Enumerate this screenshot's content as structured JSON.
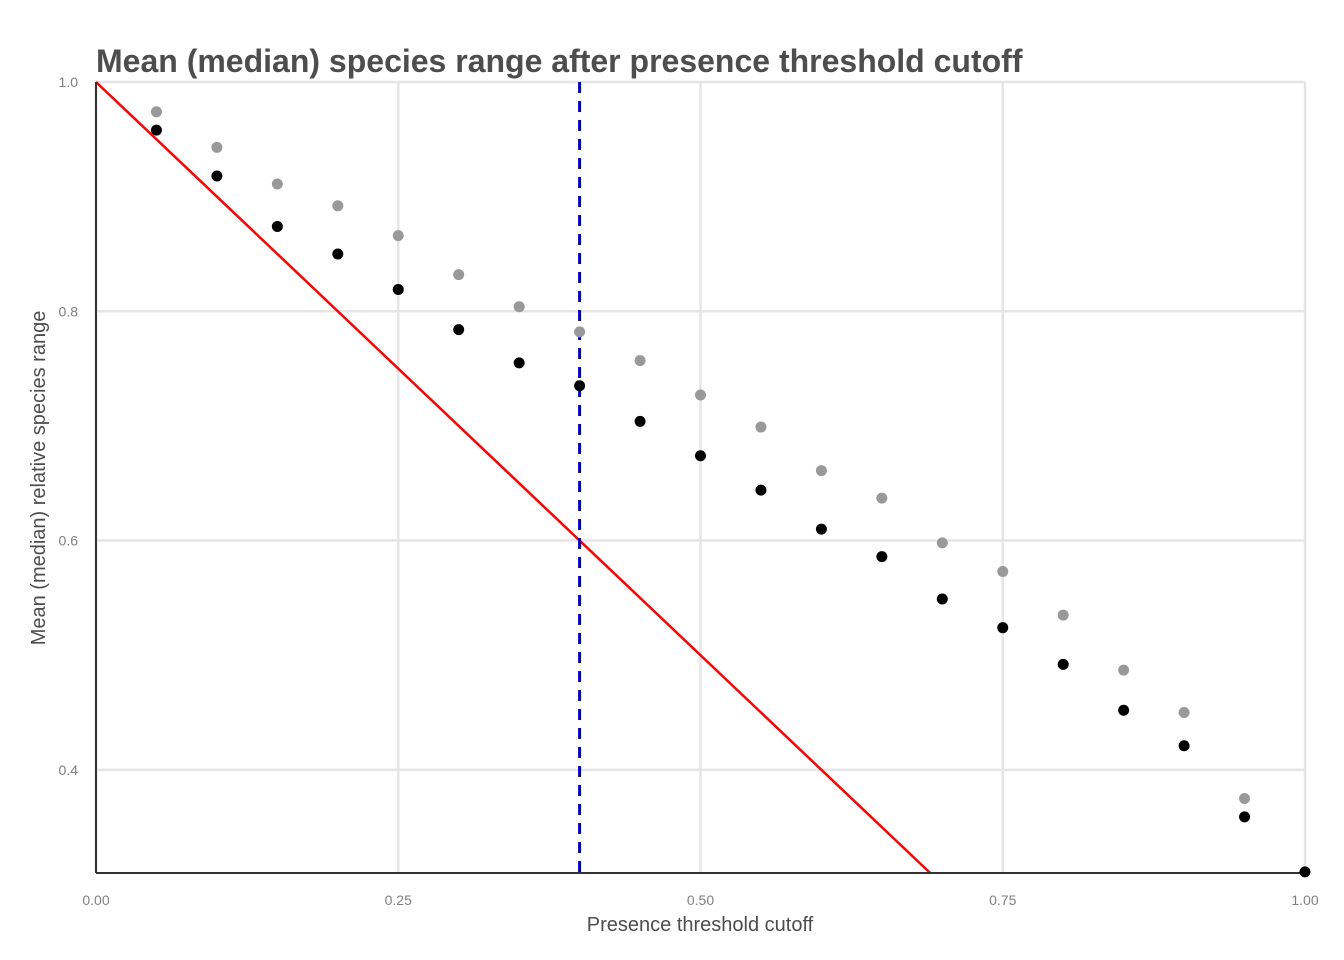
{
  "chart_data": {
    "type": "scatter",
    "title": "Mean (median) species range after presence threshold cutoff",
    "xlabel": "Presence threshold cutoff",
    "ylabel": "Mean (median) relative species range",
    "xlim": [
      0,
      1
    ],
    "ylim": [
      0.31,
      1.0
    ],
    "x_ticks": [
      0,
      0.25,
      0.5,
      0.75,
      1.0
    ],
    "x_tick_labels": [
      "0.00",
      "0.25",
      "0.50",
      "0.75",
      "1.00"
    ],
    "y_ticks": [
      0.4,
      0.6,
      0.8,
      1.0
    ],
    "y_tick_labels": [
      "0.4",
      "0.6",
      "0.8",
      "1.0"
    ],
    "grid": true,
    "legend": "none",
    "series": [
      {
        "color": "#999999",
        "x": [
          0.05,
          0.1,
          0.15,
          0.2,
          0.25,
          0.3,
          0.35,
          0.4,
          0.45,
          0.5,
          0.55,
          0.6,
          0.65,
          0.7,
          0.75,
          0.8,
          0.85,
          0.9,
          0.95
        ],
        "y": [
          0.974,
          0.943,
          0.911,
          0.892,
          0.866,
          0.832,
          0.804,
          0.782,
          0.757,
          0.727,
          0.699,
          0.661,
          0.637,
          0.598,
          0.573,
          0.535,
          0.487,
          0.45,
          0.375
        ]
      },
      {
        "color": "#000000",
        "x": [
          0.05,
          0.1,
          0.15,
          0.2,
          0.25,
          0.3,
          0.35,
          0.4,
          0.45,
          0.5,
          0.55,
          0.6,
          0.65,
          0.7,
          0.75,
          0.8,
          0.85,
          0.9,
          0.95,
          1.0
        ],
        "y": [
          0.958,
          0.918,
          0.874,
          0.85,
          0.819,
          0.784,
          0.755,
          0.735,
          0.704,
          0.674,
          0.644,
          0.61,
          0.586,
          0.549,
          0.524,
          0.492,
          0.452,
          0.421,
          0.359,
          0.311
        ]
      }
    ],
    "reference_lines": [
      {
        "kind": "diagonal",
        "from": [
          0,
          1.0
        ],
        "to": [
          0.69,
          0.31
        ],
        "color": "#ff0000",
        "style": "solid"
      },
      {
        "kind": "vertical",
        "x": 0.4,
        "color": "#0000cc",
        "style": "dashed"
      }
    ]
  }
}
